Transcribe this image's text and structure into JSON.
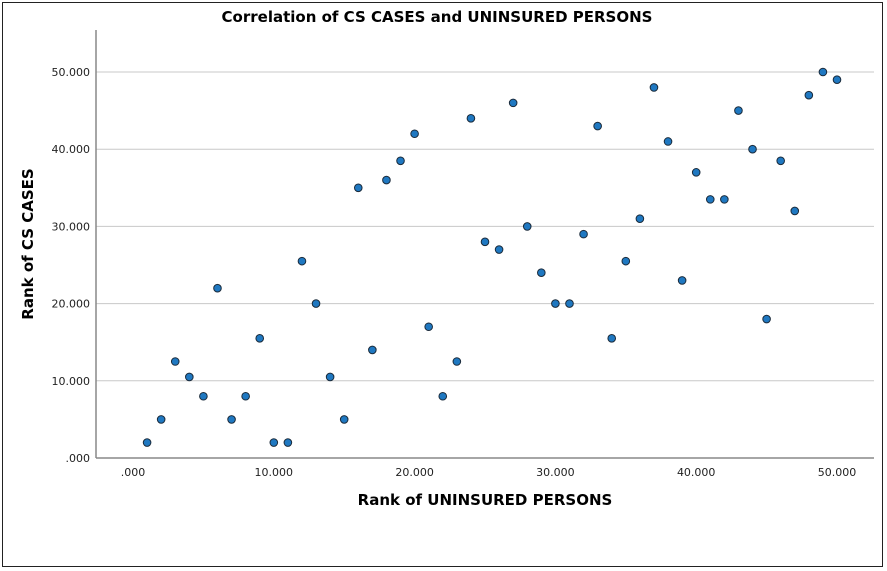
{
  "chart_data": {
    "type": "scatter",
    "title": "Correlation of CS CASES and UNINSURED PERSONS",
    "xlabel": "Rank of UNINSURED PERSONS",
    "ylabel": "Rank of CS CASES",
    "xlim": [
      0,
      50
    ],
    "ylim": [
      0,
      50
    ],
    "xticks": [
      ".000",
      "10.000",
      "20.000",
      "30.000",
      "40.000",
      "50.000"
    ],
    "yticks": [
      ".000",
      "10.000",
      "20.000",
      "30.000",
      "40.000",
      "50.000"
    ],
    "grid": "horizontal",
    "marker_color": "#1f78c1",
    "marker_edge": "#1a2a3a",
    "points": [
      [
        1,
        2
      ],
      [
        2,
        5
      ],
      [
        3,
        12.5
      ],
      [
        4,
        10.5
      ],
      [
        5,
        8
      ],
      [
        6,
        22
      ],
      [
        7,
        5
      ],
      [
        8,
        8
      ],
      [
        9,
        15.5
      ],
      [
        10,
        2
      ],
      [
        11,
        2
      ],
      [
        12,
        25.5
      ],
      [
        13,
        20
      ],
      [
        14,
        10.5
      ],
      [
        15,
        5
      ],
      [
        16,
        35
      ],
      [
        17,
        14
      ],
      [
        18,
        36
      ],
      [
        19,
        38.5
      ],
      [
        20,
        42
      ],
      [
        21,
        17
      ],
      [
        22,
        8
      ],
      [
        23,
        12.5
      ],
      [
        24,
        44
      ],
      [
        25,
        28
      ],
      [
        26,
        27
      ],
      [
        27,
        46
      ],
      [
        28,
        30
      ],
      [
        29,
        24
      ],
      [
        30,
        20
      ],
      [
        31,
        20
      ],
      [
        32,
        29
      ],
      [
        33,
        43
      ],
      [
        34,
        15.5
      ],
      [
        35,
        25.5
      ],
      [
        36,
        31
      ],
      [
        37,
        48
      ],
      [
        38,
        41
      ],
      [
        39,
        23
      ],
      [
        40,
        37
      ],
      [
        41,
        33.5
      ],
      [
        42,
        33.5
      ],
      [
        43,
        45
      ],
      [
        44,
        40
      ],
      [
        45,
        18
      ],
      [
        46,
        38.5
      ],
      [
        47,
        32
      ],
      [
        48,
        47
      ],
      [
        49,
        50
      ],
      [
        50,
        49
      ]
    ]
  }
}
